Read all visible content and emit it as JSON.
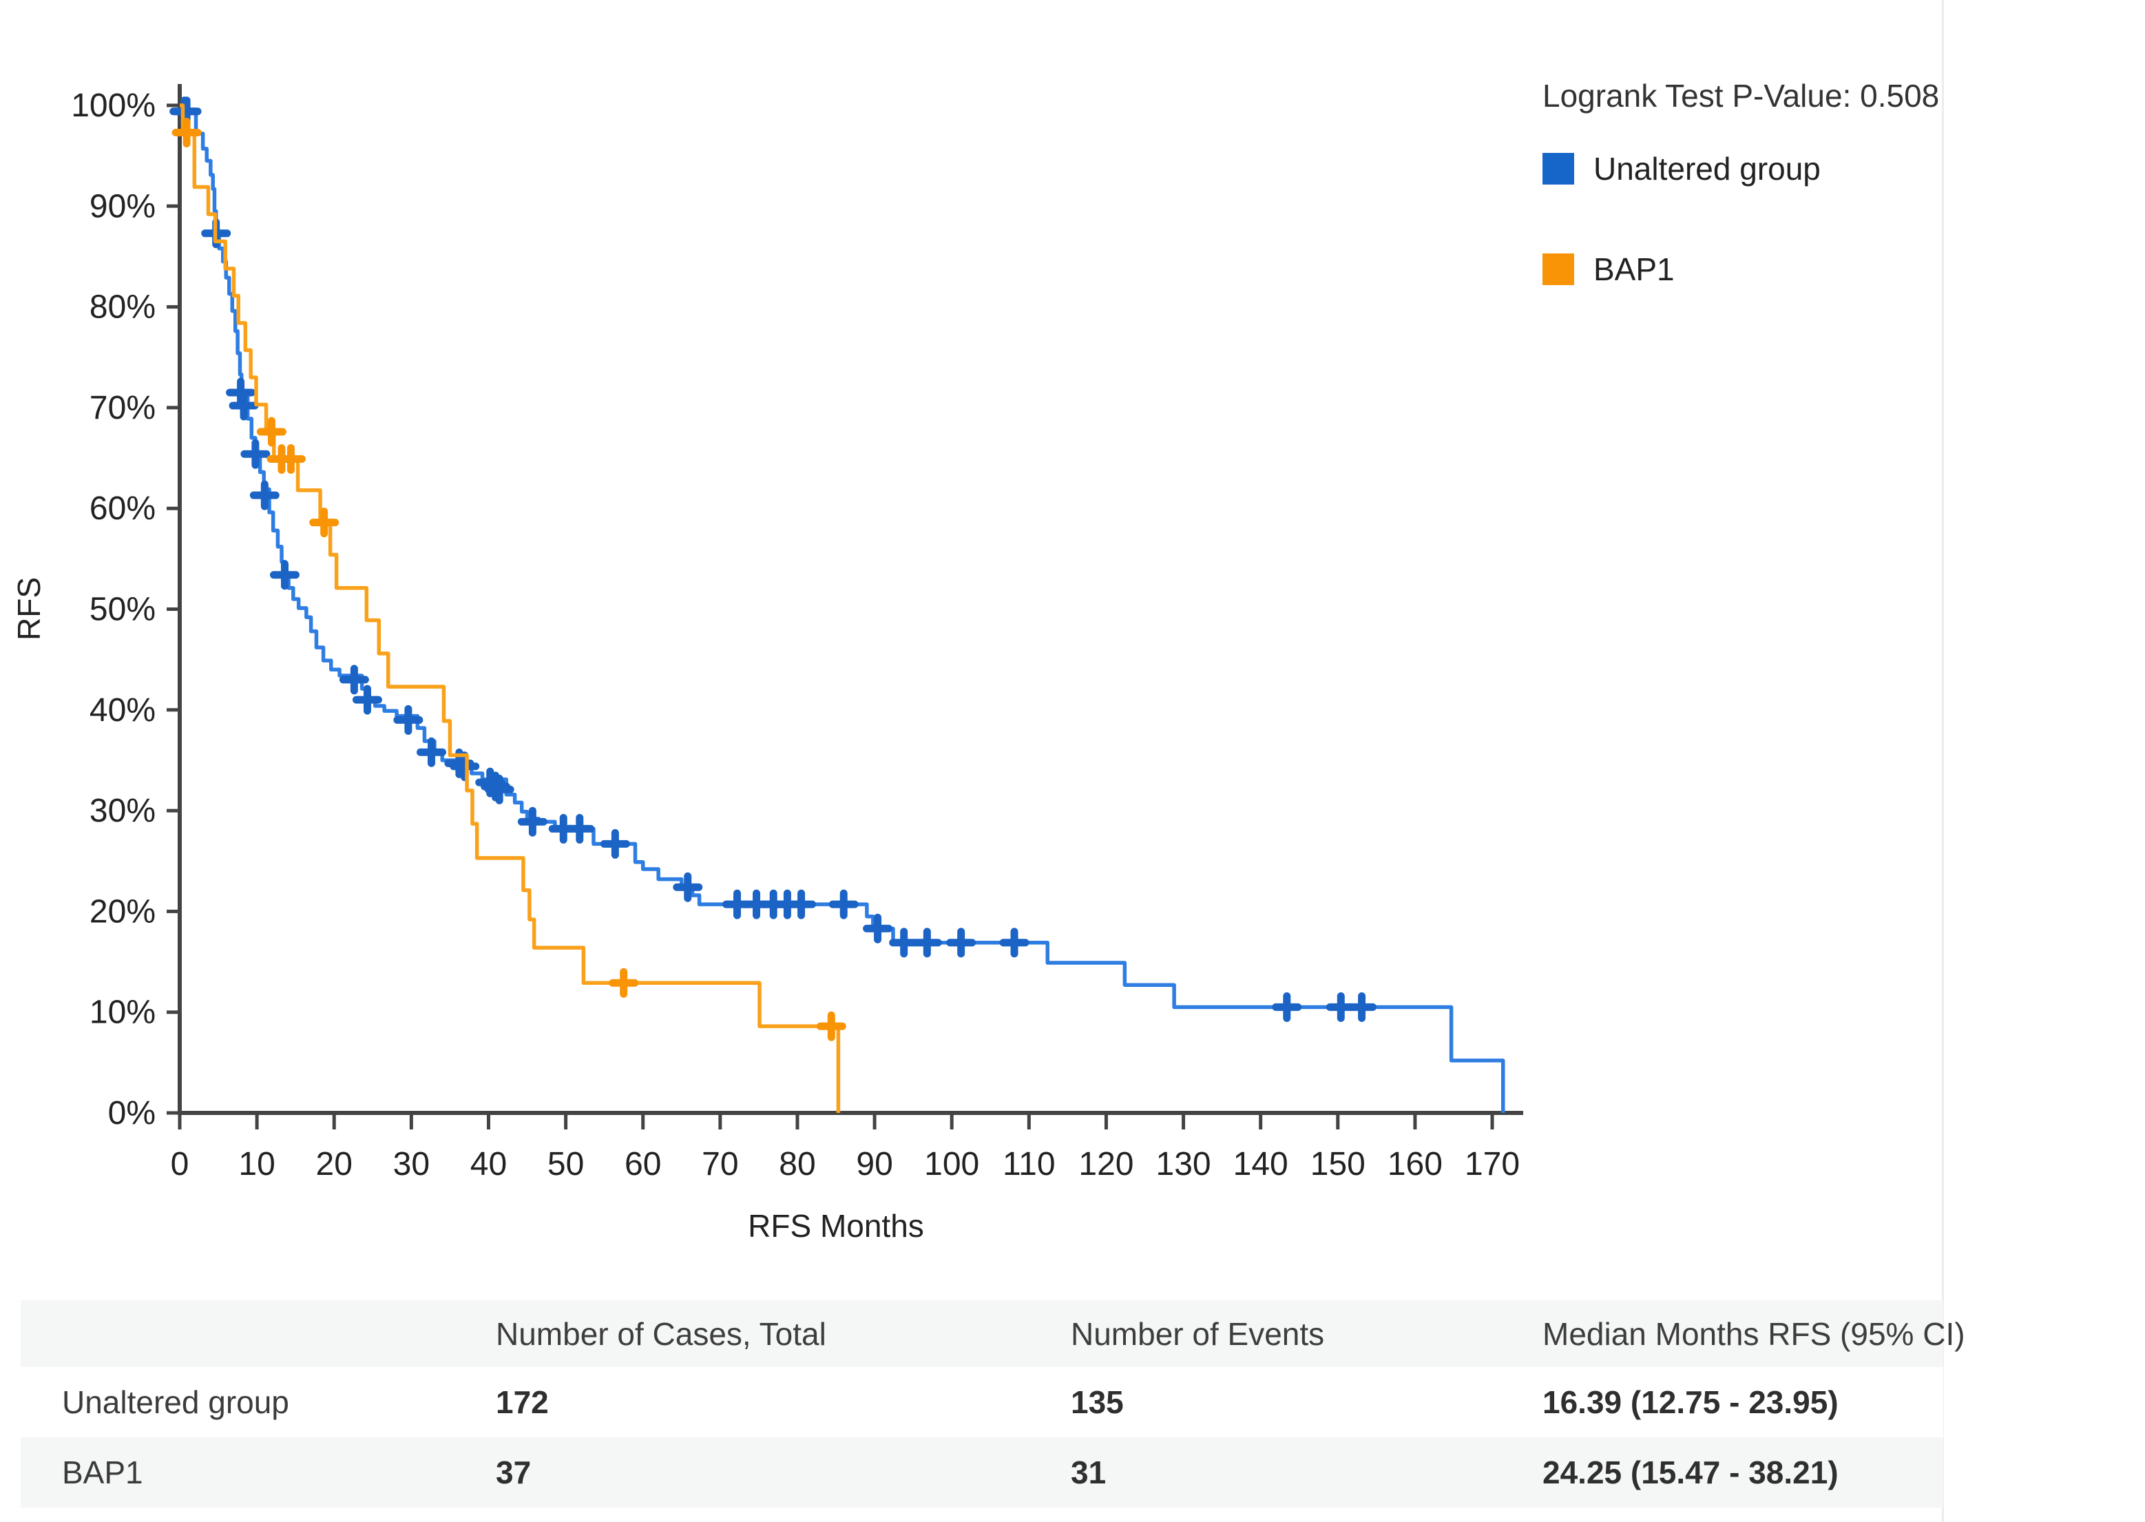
{
  "chart": {
    "p_value_label": "Logrank Test P-Value: 0.508",
    "ylabel": "RFS",
    "xlabel": "RFS Months",
    "axis_color": "#434343",
    "legend": [
      {
        "label": "Unaltered group",
        "color": "#1666C9"
      },
      {
        "label": "BAP1",
        "color": "#F89406"
      }
    ]
  },
  "chart_data": {
    "type": "line",
    "subtype": "kaplan-meier-step",
    "title": "",
    "xlabel": "RFS Months",
    "ylabel": "RFS",
    "xlim": [
      0,
      175
    ],
    "ylim": [
      0,
      100
    ],
    "grid": false,
    "legend_position": "top-right",
    "x_ticks": [
      0,
      10,
      20,
      30,
      40,
      50,
      60,
      70,
      80,
      90,
      100,
      110,
      120,
      130,
      140,
      150,
      160,
      170
    ],
    "y_ticks": [
      100,
      90,
      80,
      70,
      60,
      50,
      40,
      30,
      20,
      10,
      0
    ],
    "y_tick_labels": [
      "100%",
      "90%",
      "80%",
      "70%",
      "60%",
      "50%",
      "40%",
      "30%",
      "20%",
      "10%",
      "0%"
    ],
    "series": [
      {
        "name": "Unaltered group",
        "line_color": "#2E7DE2",
        "marker_color": "#1B63C5",
        "steps": [
          [
            0,
            100
          ],
          [
            0.4,
            99.4
          ],
          [
            2.1,
            97.2
          ],
          [
            3.0,
            95.7
          ],
          [
            3.5,
            94.5
          ],
          [
            4.0,
            93.1
          ],
          [
            4.3,
            91.7
          ],
          [
            4.5,
            89.5
          ],
          [
            4.7,
            87.3
          ],
          [
            5.1,
            85.8
          ],
          [
            5.6,
            84.5
          ],
          [
            6.0,
            82.9
          ],
          [
            6.4,
            81.3
          ],
          [
            6.8,
            79.6
          ],
          [
            7.2,
            77.6
          ],
          [
            7.5,
            75.4
          ],
          [
            7.8,
            73.3
          ],
          [
            8.0,
            71.5
          ],
          [
            8.8,
            68.9
          ],
          [
            9.3,
            67.0
          ],
          [
            9.8,
            65.4
          ],
          [
            10.4,
            63.6
          ],
          [
            10.9,
            61.9
          ],
          [
            11.6,
            59.6
          ],
          [
            12.1,
            57.8
          ],
          [
            12.7,
            56.2
          ],
          [
            13.2,
            54.7
          ],
          [
            13.6,
            53.4
          ],
          [
            14.1,
            52.1
          ],
          [
            14.7,
            51.0
          ],
          [
            15.4,
            50.1
          ],
          [
            16.4,
            49.2
          ],
          [
            17.0,
            47.8
          ],
          [
            17.7,
            46.2
          ],
          [
            18.6,
            44.9
          ],
          [
            19.6,
            44.0
          ],
          [
            20.7,
            43.4
          ],
          [
            23.6,
            42.1
          ],
          [
            24.5,
            41.0
          ],
          [
            25.3,
            40.4
          ],
          [
            26.5,
            39.9
          ],
          [
            28.1,
            39.4
          ],
          [
            30.8,
            38.2
          ],
          [
            31.7,
            36.9
          ],
          [
            33.0,
            35.8
          ],
          [
            34.0,
            35.0
          ],
          [
            36.5,
            34.4
          ],
          [
            37.8,
            33.7
          ],
          [
            39.2,
            33.1
          ],
          [
            42.3,
            31.6
          ],
          [
            43.4,
            30.8
          ],
          [
            44.3,
            29.9
          ],
          [
            45.0,
            29.2
          ],
          [
            46.5,
            28.9
          ],
          [
            48.6,
            28.2
          ],
          [
            53.6,
            26.7
          ],
          [
            59.0,
            24.9
          ],
          [
            60.0,
            24.2
          ],
          [
            62.0,
            23.2
          ],
          [
            65.0,
            22.4
          ],
          [
            66.4,
            21.6
          ],
          [
            67.3,
            20.7
          ],
          [
            89.0,
            19.5
          ],
          [
            89.8,
            18.3
          ],
          [
            92.4,
            16.9
          ],
          [
            112.4,
            14.9
          ],
          [
            122.4,
            12.7
          ],
          [
            128.8,
            10.5
          ],
          [
            164.7,
            5.2
          ],
          [
            171.4,
            0
          ]
        ],
        "censors": [
          [
            0.6,
            99.4
          ],
          [
            0.9,
            99.4
          ],
          [
            4.7,
            87.3
          ],
          [
            7.9,
            71.5
          ],
          [
            8.3,
            70.2
          ],
          [
            9.8,
            65.4
          ],
          [
            11.0,
            61.3
          ],
          [
            13.6,
            53.4
          ],
          [
            22.6,
            43.0
          ],
          [
            24.3,
            41.0
          ],
          [
            29.6,
            39.0
          ],
          [
            32.6,
            35.8
          ],
          [
            36.2,
            34.7
          ],
          [
            36.9,
            34.4
          ],
          [
            40.2,
            32.8
          ],
          [
            40.9,
            32.4
          ],
          [
            41.4,
            32.1
          ],
          [
            45.7,
            28.9
          ],
          [
            49.7,
            28.2
          ],
          [
            51.8,
            28.2
          ],
          [
            56.4,
            26.7
          ],
          [
            65.8,
            22.4
          ],
          [
            72.2,
            20.7
          ],
          [
            74.7,
            20.7
          ],
          [
            76.9,
            20.7
          ],
          [
            78.7,
            20.7
          ],
          [
            80.5,
            20.7
          ],
          [
            86.0,
            20.7
          ],
          [
            90.4,
            18.3
          ],
          [
            93.8,
            16.9
          ],
          [
            96.8,
            16.9
          ],
          [
            101.2,
            16.9
          ],
          [
            108.1,
            16.9
          ],
          [
            143.4,
            10.5
          ],
          [
            150.4,
            10.5
          ],
          [
            153.1,
            10.5
          ]
        ]
      },
      {
        "name": "BAP1",
        "line_color": "#F9A11B",
        "marker_color": "#F89406",
        "steps": [
          [
            0,
            100
          ],
          [
            0.4,
            97.3
          ],
          [
            1.9,
            91.9
          ],
          [
            3.7,
            89.2
          ],
          [
            4.6,
            86.5
          ],
          [
            5.9,
            83.8
          ],
          [
            7.0,
            81.1
          ],
          [
            7.6,
            78.4
          ],
          [
            8.5,
            75.7
          ],
          [
            9.2,
            73.0
          ],
          [
            9.9,
            70.3
          ],
          [
            11.2,
            67.6
          ],
          [
            12.2,
            64.9
          ],
          [
            15.3,
            61.8
          ],
          [
            18.2,
            58.6
          ],
          [
            19.5,
            55.4
          ],
          [
            20.3,
            52.1
          ],
          [
            24.2,
            48.9
          ],
          [
            25.8,
            45.6
          ],
          [
            27.0,
            42.3
          ],
          [
            34.2,
            38.9
          ],
          [
            35.0,
            35.5
          ],
          [
            37.2,
            32.0
          ],
          [
            37.9,
            28.7
          ],
          [
            38.5,
            25.3
          ],
          [
            44.5,
            22.1
          ],
          [
            45.3,
            19.2
          ],
          [
            45.9,
            16.4
          ],
          [
            52.3,
            12.9
          ],
          [
            75.1,
            8.6
          ],
          [
            85.3,
            0
          ]
        ],
        "censors": [
          [
            0.9,
            97.3
          ],
          [
            11.9,
            67.6
          ],
          [
            13.2,
            64.9
          ],
          [
            14.4,
            64.9
          ],
          [
            18.7,
            58.6
          ],
          [
            57.5,
            12.9
          ],
          [
            84.4,
            8.6
          ]
        ]
      }
    ]
  },
  "table": {
    "headers": {
      "name": "",
      "cases": "Number of Cases, Total",
      "events": "Number of Events",
      "median": "Median Months RFS (95% CI)"
    },
    "rows": [
      {
        "name": "Unaltered group",
        "cases": "172",
        "events": "135",
        "median": "16.39 (12.75 - 23.95)"
      },
      {
        "name": "BAP1",
        "cases": "37",
        "events": "31",
        "median": "24.25 (15.47 - 38.21)"
      }
    ]
  }
}
